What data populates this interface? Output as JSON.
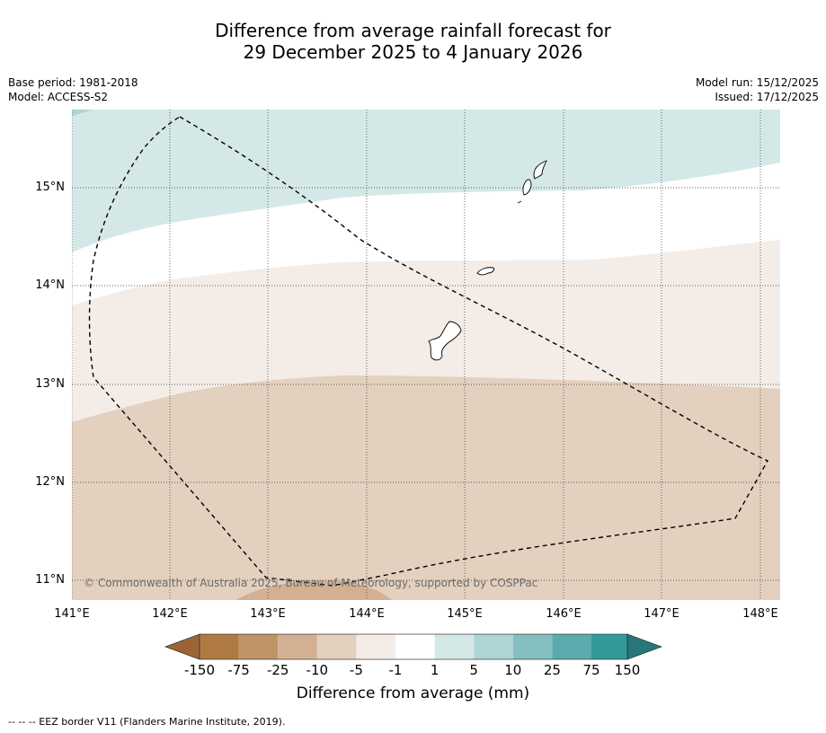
{
  "title": {
    "line1": "Difference from average rainfall forecast for",
    "line2": "29 December 2025 to 4 January 2026"
  },
  "meta": {
    "base_period": "Base period: 1981-2018",
    "model": "Model: ACCESS-S2",
    "model_run": "Model run: 15/12/2025",
    "issued": "Issued: 17/12/2025"
  },
  "map": {
    "lat_labels": [
      "15°N",
      "14°N",
      "13°N",
      "12°N",
      "11°N"
    ],
    "lon_labels": [
      "141°E",
      "142°E",
      "143°E",
      "144°E",
      "145°E",
      "146°E",
      "147°E",
      "148°E"
    ],
    "copyright": "© Commonwealth of Australia 2025, Bureau of Meteorology, supported by COSPPac",
    "islands": [
      "Guam",
      "Rota",
      "Tinian",
      "Saipan"
    ]
  },
  "colorbar": {
    "labels": [
      "-150",
      "-75",
      "-25",
      "-10",
      "-5",
      "-1",
      "1",
      "5",
      "10",
      "25",
      "75",
      "150"
    ],
    "colors": [
      "#9c6436",
      "#b07a43",
      "#c19468",
      "#d4b093",
      "#e3d0bf",
      "#f4ece6",
      "#ffffff",
      "#d4e8e7",
      "#aed4d3",
      "#84c0c0",
      "#5aacac",
      "#349a99",
      "#267878"
    ],
    "title": "Difference from average (mm)"
  },
  "footnote": "--  --  -- EEZ border V11 (Flanders Marine Institute, 2019)."
}
